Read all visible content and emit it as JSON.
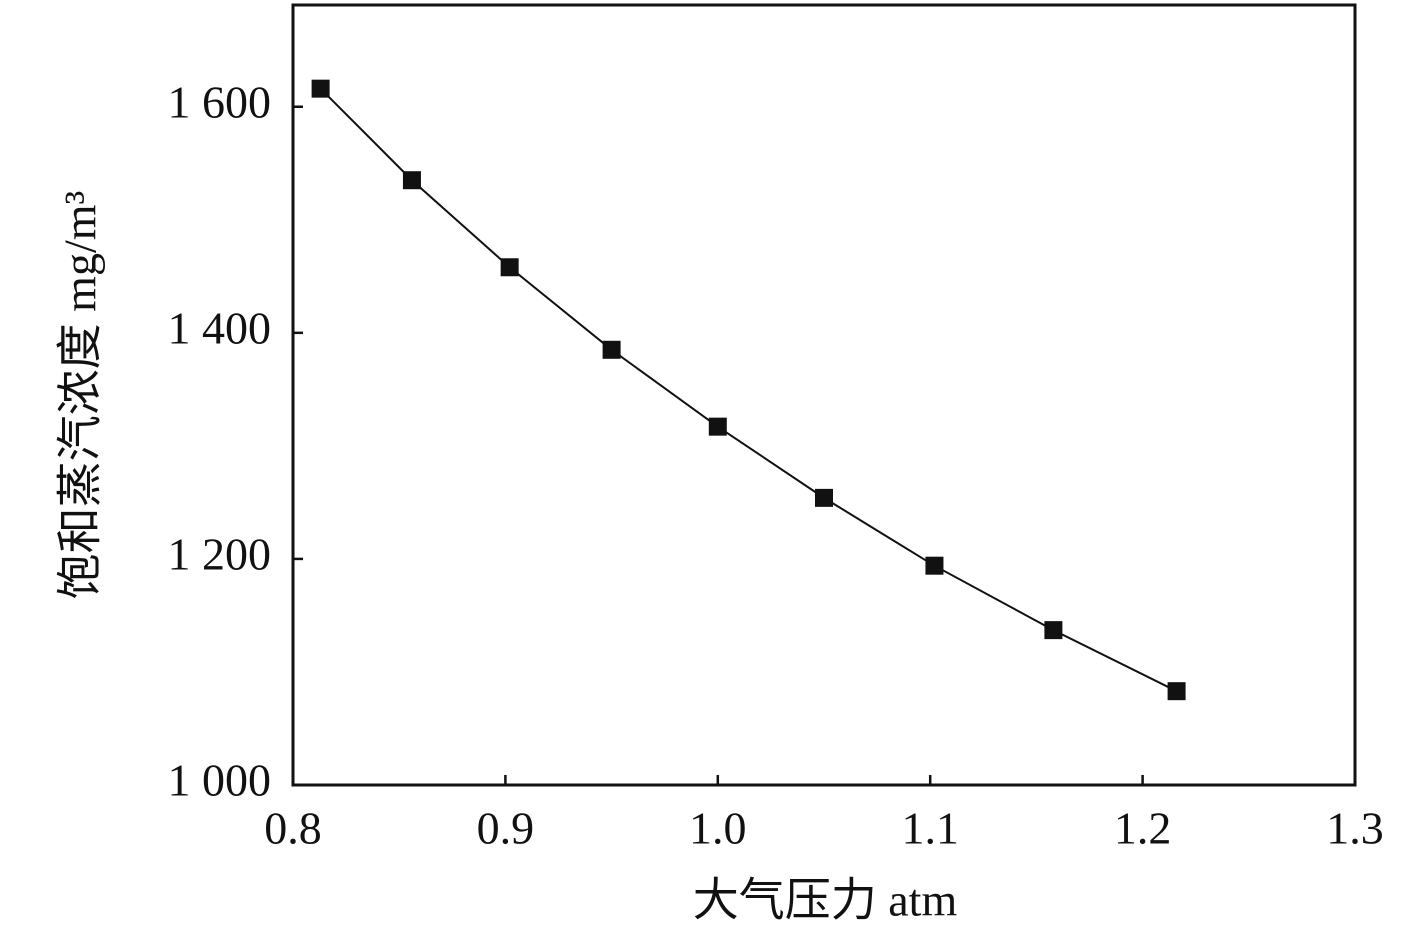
{
  "chart_data": {
    "type": "line",
    "x_label": "大气压力 atm",
    "y_label": "饱和蒸汽浓度 mg/m³",
    "x": [
      0.813,
      0.856,
      0.902,
      0.95,
      1.0,
      1.05,
      1.102,
      1.158,
      1.216
    ],
    "series": [
      {
        "color": "#111111",
        "marker": "square",
        "values": [
          1616,
          1535,
          1458,
          1385,
          1317,
          1254,
          1194,
          1137,
          1083
        ]
      }
    ],
    "xlim": [
      0.8,
      1.3
    ],
    "xticks": [
      0.8,
      0.9,
      {
        "value": 1,
        "label": "1.0"
      },
      1.1,
      1.2,
      1.3
    ],
    "ylim": [
      1000,
      1690
    ],
    "yticks": [
      {
        "value": 1000,
        "label": "1 000"
      },
      {
        "value": 1200,
        "label": "1 200"
      },
      {
        "value": 1400,
        "label": "1 400"
      },
      {
        "value": 1600,
        "label": "1 600"
      }
    ],
    "grid": false
  }
}
